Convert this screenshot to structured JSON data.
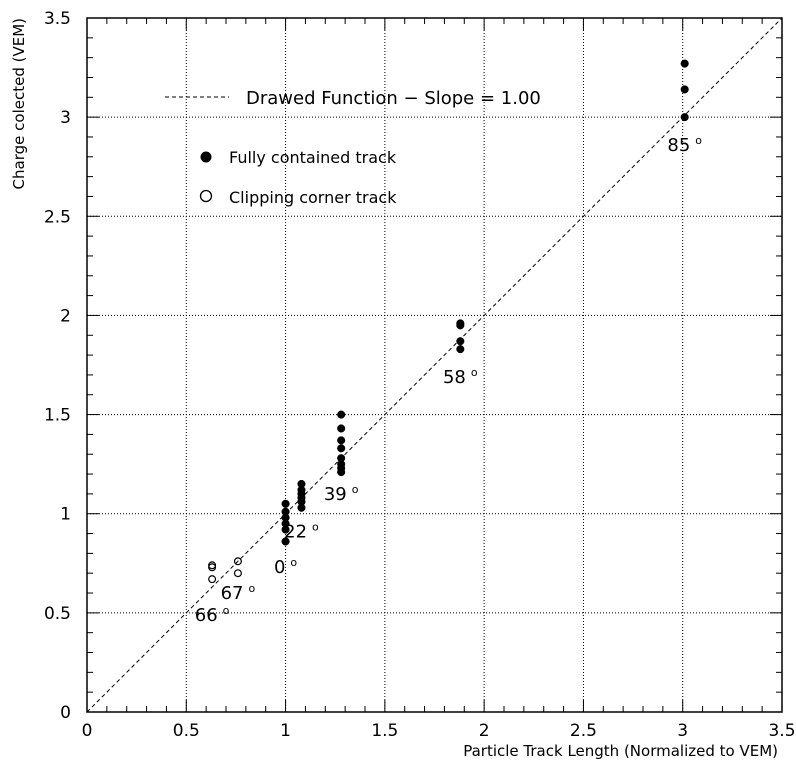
{
  "chart_data": {
    "type": "scatter",
    "xlabel": "Particle Track Length (Normalized to VEM)",
    "ylabel": "Charge colected (VEM)",
    "xlim": [
      0,
      3.5
    ],
    "ylim": [
      0,
      3.5
    ],
    "x_ticks": [
      "0",
      "0.5",
      "1",
      "1.5",
      "2",
      "2.5",
      "3",
      "3.5"
    ],
    "y_ticks": [
      "0",
      "0.5",
      "1",
      "1.5",
      "2",
      "2.5",
      "3",
      "3.5"
    ],
    "grid": true,
    "legend_position": "top-left",
    "reference_line": {
      "label": "Drawed Function − Slope = 1.00",
      "slope": 1.0,
      "style": "dashed"
    },
    "series": [
      {
        "name": "Fully contained track",
        "marker": "filled-circle",
        "points": [
          [
            1.0,
            0.86
          ],
          [
            1.0,
            0.92
          ],
          [
            1.0,
            0.95
          ],
          [
            1.0,
            0.98
          ],
          [
            1.0,
            1.01
          ],
          [
            1.0,
            1.05
          ],
          [
            1.08,
            1.03
          ],
          [
            1.08,
            1.06
          ],
          [
            1.08,
            1.08
          ],
          [
            1.08,
            1.1
          ],
          [
            1.08,
            1.12
          ],
          [
            1.08,
            1.15
          ],
          [
            1.28,
            1.21
          ],
          [
            1.28,
            1.23
          ],
          [
            1.28,
            1.25
          ],
          [
            1.28,
            1.28
          ],
          [
            1.28,
            1.33
          ],
          [
            1.28,
            1.37
          ],
          [
            1.28,
            1.43
          ],
          [
            1.28,
            1.5
          ],
          [
            1.88,
            1.83
          ],
          [
            1.88,
            1.87
          ],
          [
            1.88,
            1.95
          ],
          [
            1.88,
            1.96
          ],
          [
            3.01,
            3.0
          ],
          [
            3.01,
            3.14
          ],
          [
            3.01,
            3.27
          ]
        ]
      },
      {
        "name": "Clipping corner track",
        "marker": "open-circle",
        "points": [
          [
            0.63,
            0.67
          ],
          [
            0.63,
            0.73
          ],
          [
            0.63,
            0.74
          ],
          [
            0.76,
            0.7
          ],
          [
            0.76,
            0.76
          ]
        ]
      }
    ],
    "annotations": [
      {
        "text": "85",
        "deg": "o",
        "x": 3.01,
        "y": 2.83
      },
      {
        "text": "58",
        "deg": "o",
        "x": 1.88,
        "y": 1.66
      },
      {
        "text": "39",
        "deg": "o",
        "x": 1.28,
        "y": 1.07
      },
      {
        "text": "22",
        "deg": "o",
        "x": 1.08,
        "y": 0.88
      },
      {
        "text": "0",
        "deg": "o",
        "x": 1.0,
        "y": 0.7
      },
      {
        "text": "67",
        "deg": "o",
        "x": 0.76,
        "y": 0.57
      },
      {
        "text": "66",
        "deg": "o",
        "x": 0.63,
        "y": 0.46
      }
    ]
  }
}
